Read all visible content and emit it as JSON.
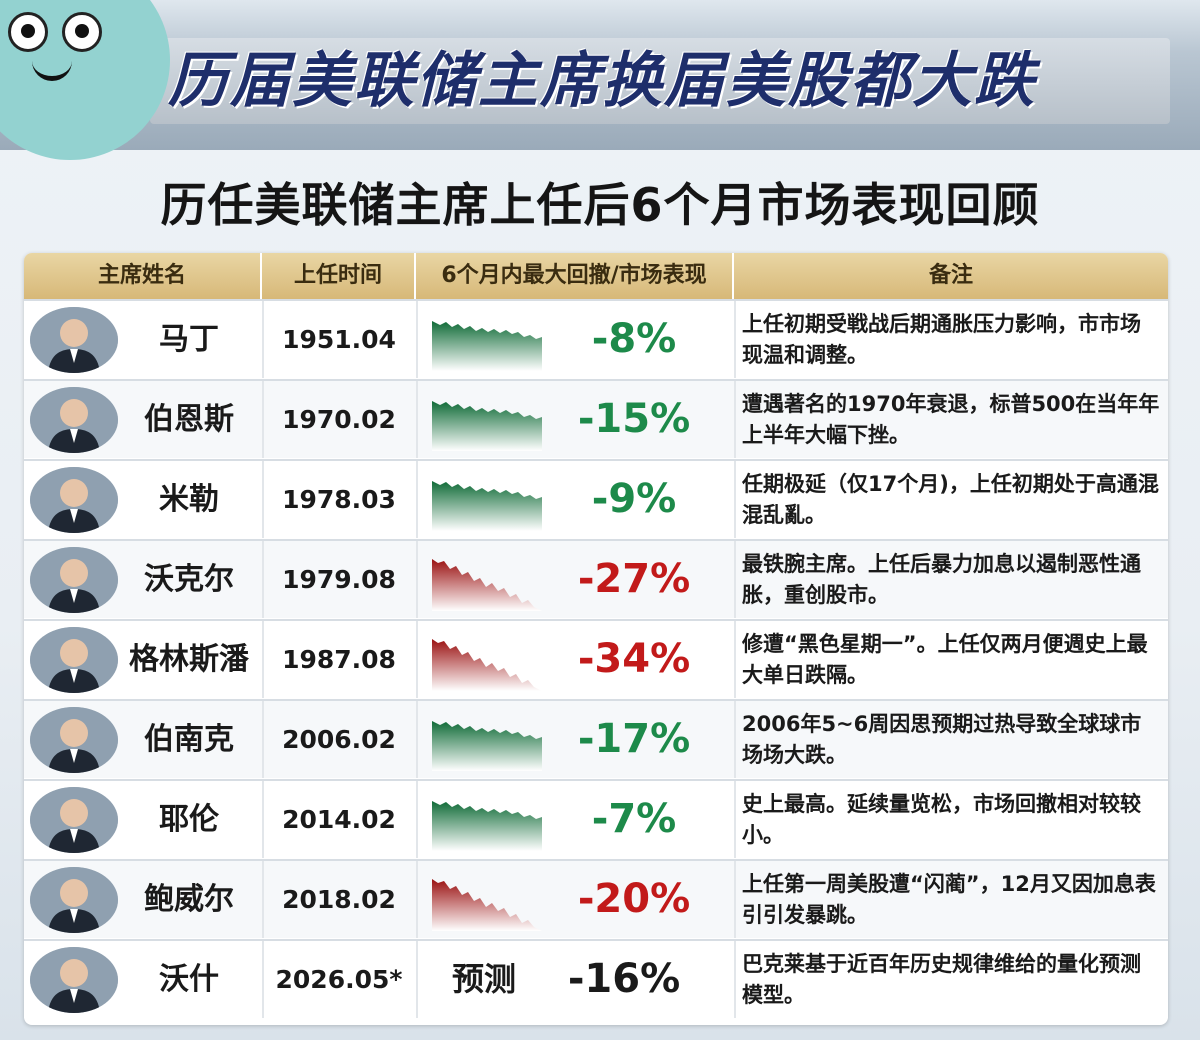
{
  "banner_title": "历届美联储主席换届美股都大跌",
  "subtitle": "历任美联储主席上任后6个月市场表现回顾",
  "headers": {
    "name": "主席姓名",
    "date": "上任时间",
    "performance": "6个月内最大回撤/市场表现",
    "notes": "备注"
  },
  "colors": {
    "green": "#1d8a4a",
    "red": "#c21a1a",
    "header_gold": "#d7b878"
  },
  "rows": [
    {
      "name": "马丁",
      "date": "1951.04",
      "drawdown": "-8%",
      "trend": "green",
      "note": "上任初期受戦战后期通胀压力影响，市市场现温和调整。"
    },
    {
      "name": "伯恩斯",
      "date": "1970.02",
      "drawdown": "-15%",
      "trend": "green",
      "note": "遭遇著名的1970年衰退，标普500在当年年上半年大幅下挫。"
    },
    {
      "name": "米勒",
      "date": "1978.03",
      "drawdown": "-9%",
      "trend": "green",
      "note": "任期极延（仅17个月)，上任初期处于高通混混乱亂。"
    },
    {
      "name": "沃克尔",
      "date": "1979.08",
      "drawdown": "-27%",
      "trend": "red",
      "note": "最铁腕主席。上任后暴力加息以遏制恶性通胀，重创股市。"
    },
    {
      "name": "格林斯潘",
      "date": "1987.08",
      "drawdown": "-34%",
      "trend": "red",
      "note": "修遭“黑色星期一”。上任仅两月便週史上最大单日跌隔。"
    },
    {
      "name": "伯南克",
      "date": "2006.02",
      "drawdown": "-17%",
      "trend": "green",
      "note": "2006年5~6周因思预期过热导致全球球市场场大跌。"
    },
    {
      "name": "耶伦",
      "date": "2014.02",
      "drawdown": "-7%",
      "trend": "green",
      "note": "史上最高。延续量览松，市场回撤相对较较小。"
    },
    {
      "name": "鲍威尔",
      "date": "2018.02",
      "drawdown": "-20%",
      "trend": "red",
      "note": "上任第一周美股遭“闪蔺”，12月又因加息表引引发暴跳。"
    },
    {
      "name": "沃什",
      "date": "2026.05*",
      "drawdown": "-16%",
      "trend": "forecast",
      "forecast_label": "预测",
      "note": "巴克莱基于近百年历史规律维给的量化预测模型。"
    }
  ]
}
